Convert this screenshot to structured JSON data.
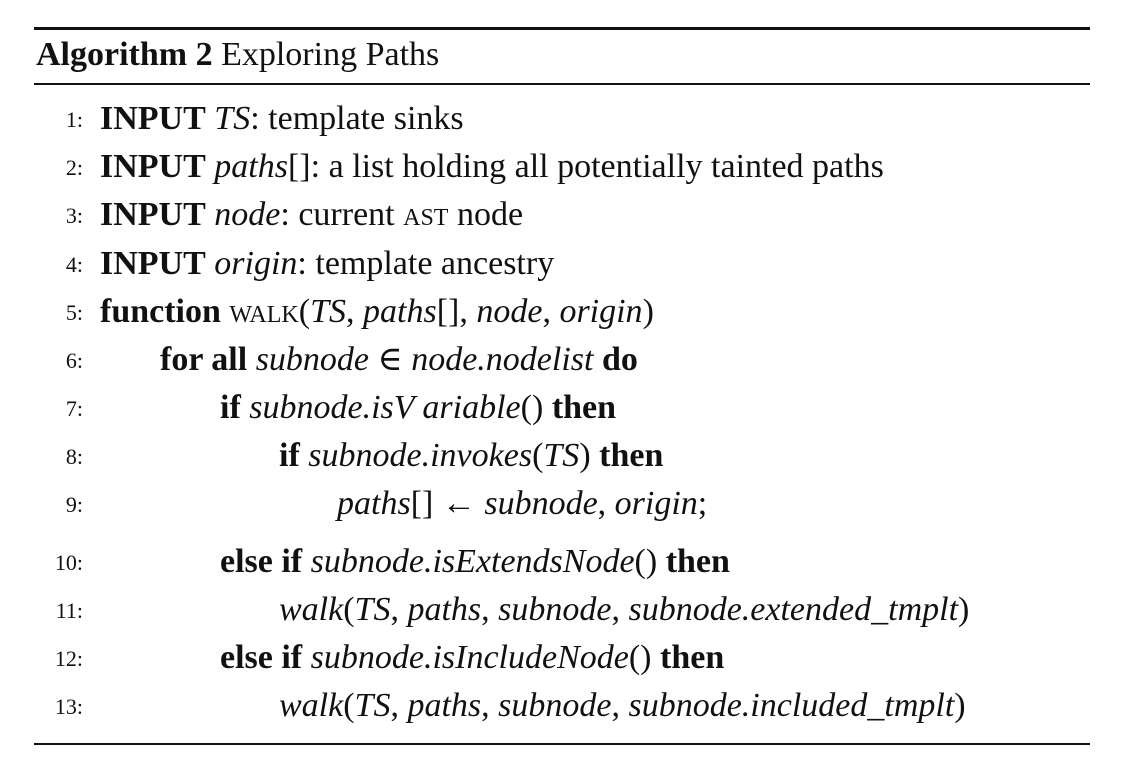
{
  "algorithm": {
    "label": "Algorithm 2",
    "title": "Exploring Paths"
  },
  "lines": [
    {
      "num": "1:",
      "kw": "INPUT",
      "var": "TS",
      "rest": ": template sinks"
    },
    {
      "num": "2:",
      "kw": "INPUT",
      "var": "paths",
      "rest": "[]: a list holding all potentially tainted paths"
    },
    {
      "num": "3:",
      "kw": "INPUT",
      "var": "node",
      "rest_a": ": current ",
      "sc": "ast",
      "rest_b": " node"
    },
    {
      "num": "4:",
      "kw": "INPUT",
      "var": "origin",
      "rest": ": template ancestry"
    },
    {
      "num": "5:",
      "kw": "function",
      "fname": "walk",
      "open": "(",
      "a1": "TS",
      "sep1": ", ",
      "a2": "paths",
      "sep2": "[], ",
      "a3": "node",
      "sep3": ", ",
      "a4": "origin",
      "close": ")"
    },
    {
      "num": "6:",
      "kw": "for all",
      "expr": "subnode ∈ node.nodelist",
      "kw_end": "do"
    },
    {
      "num": "7:",
      "kw": "if",
      "expr_a": "subnode.isV ariable",
      "expr_b": "()",
      "kw_end": "then"
    },
    {
      "num": "8:",
      "kw": "if",
      "expr_a": "subnode.invokes",
      "expr_b": "(",
      "expr_c": "TS",
      "expr_d": ")",
      "kw_end": "then"
    },
    {
      "num": "9:",
      "a": "paths",
      "b": "[] ← ",
      "c": "subnode",
      "d": ", ",
      "e": "origin",
      "f": ";"
    },
    {
      "num": "10:",
      "kw": "else if",
      "expr_a": "subnode.isExtendsNode",
      "expr_b": "()",
      "kw_end": "then"
    },
    {
      "num": "11:",
      "a": "walk",
      "b": "(",
      "c": "TS",
      "d": ", ",
      "e": "paths",
      "f": ", ",
      "g": "subnode",
      "h": ", ",
      "i": "subnode.extended_tmplt",
      "j": ")"
    },
    {
      "num": "12:",
      "kw": "else if",
      "expr_a": "subnode.isIncludeNode",
      "expr_b": "()",
      "kw_end": "then"
    },
    {
      "num": "13:",
      "a": "walk",
      "b": "(",
      "c": "TS",
      "d": ", ",
      "e": "paths",
      "f": ", ",
      "g": "subnode",
      "h": ", ",
      "i": "subnode.included_tmplt",
      "j": ")"
    }
  ]
}
